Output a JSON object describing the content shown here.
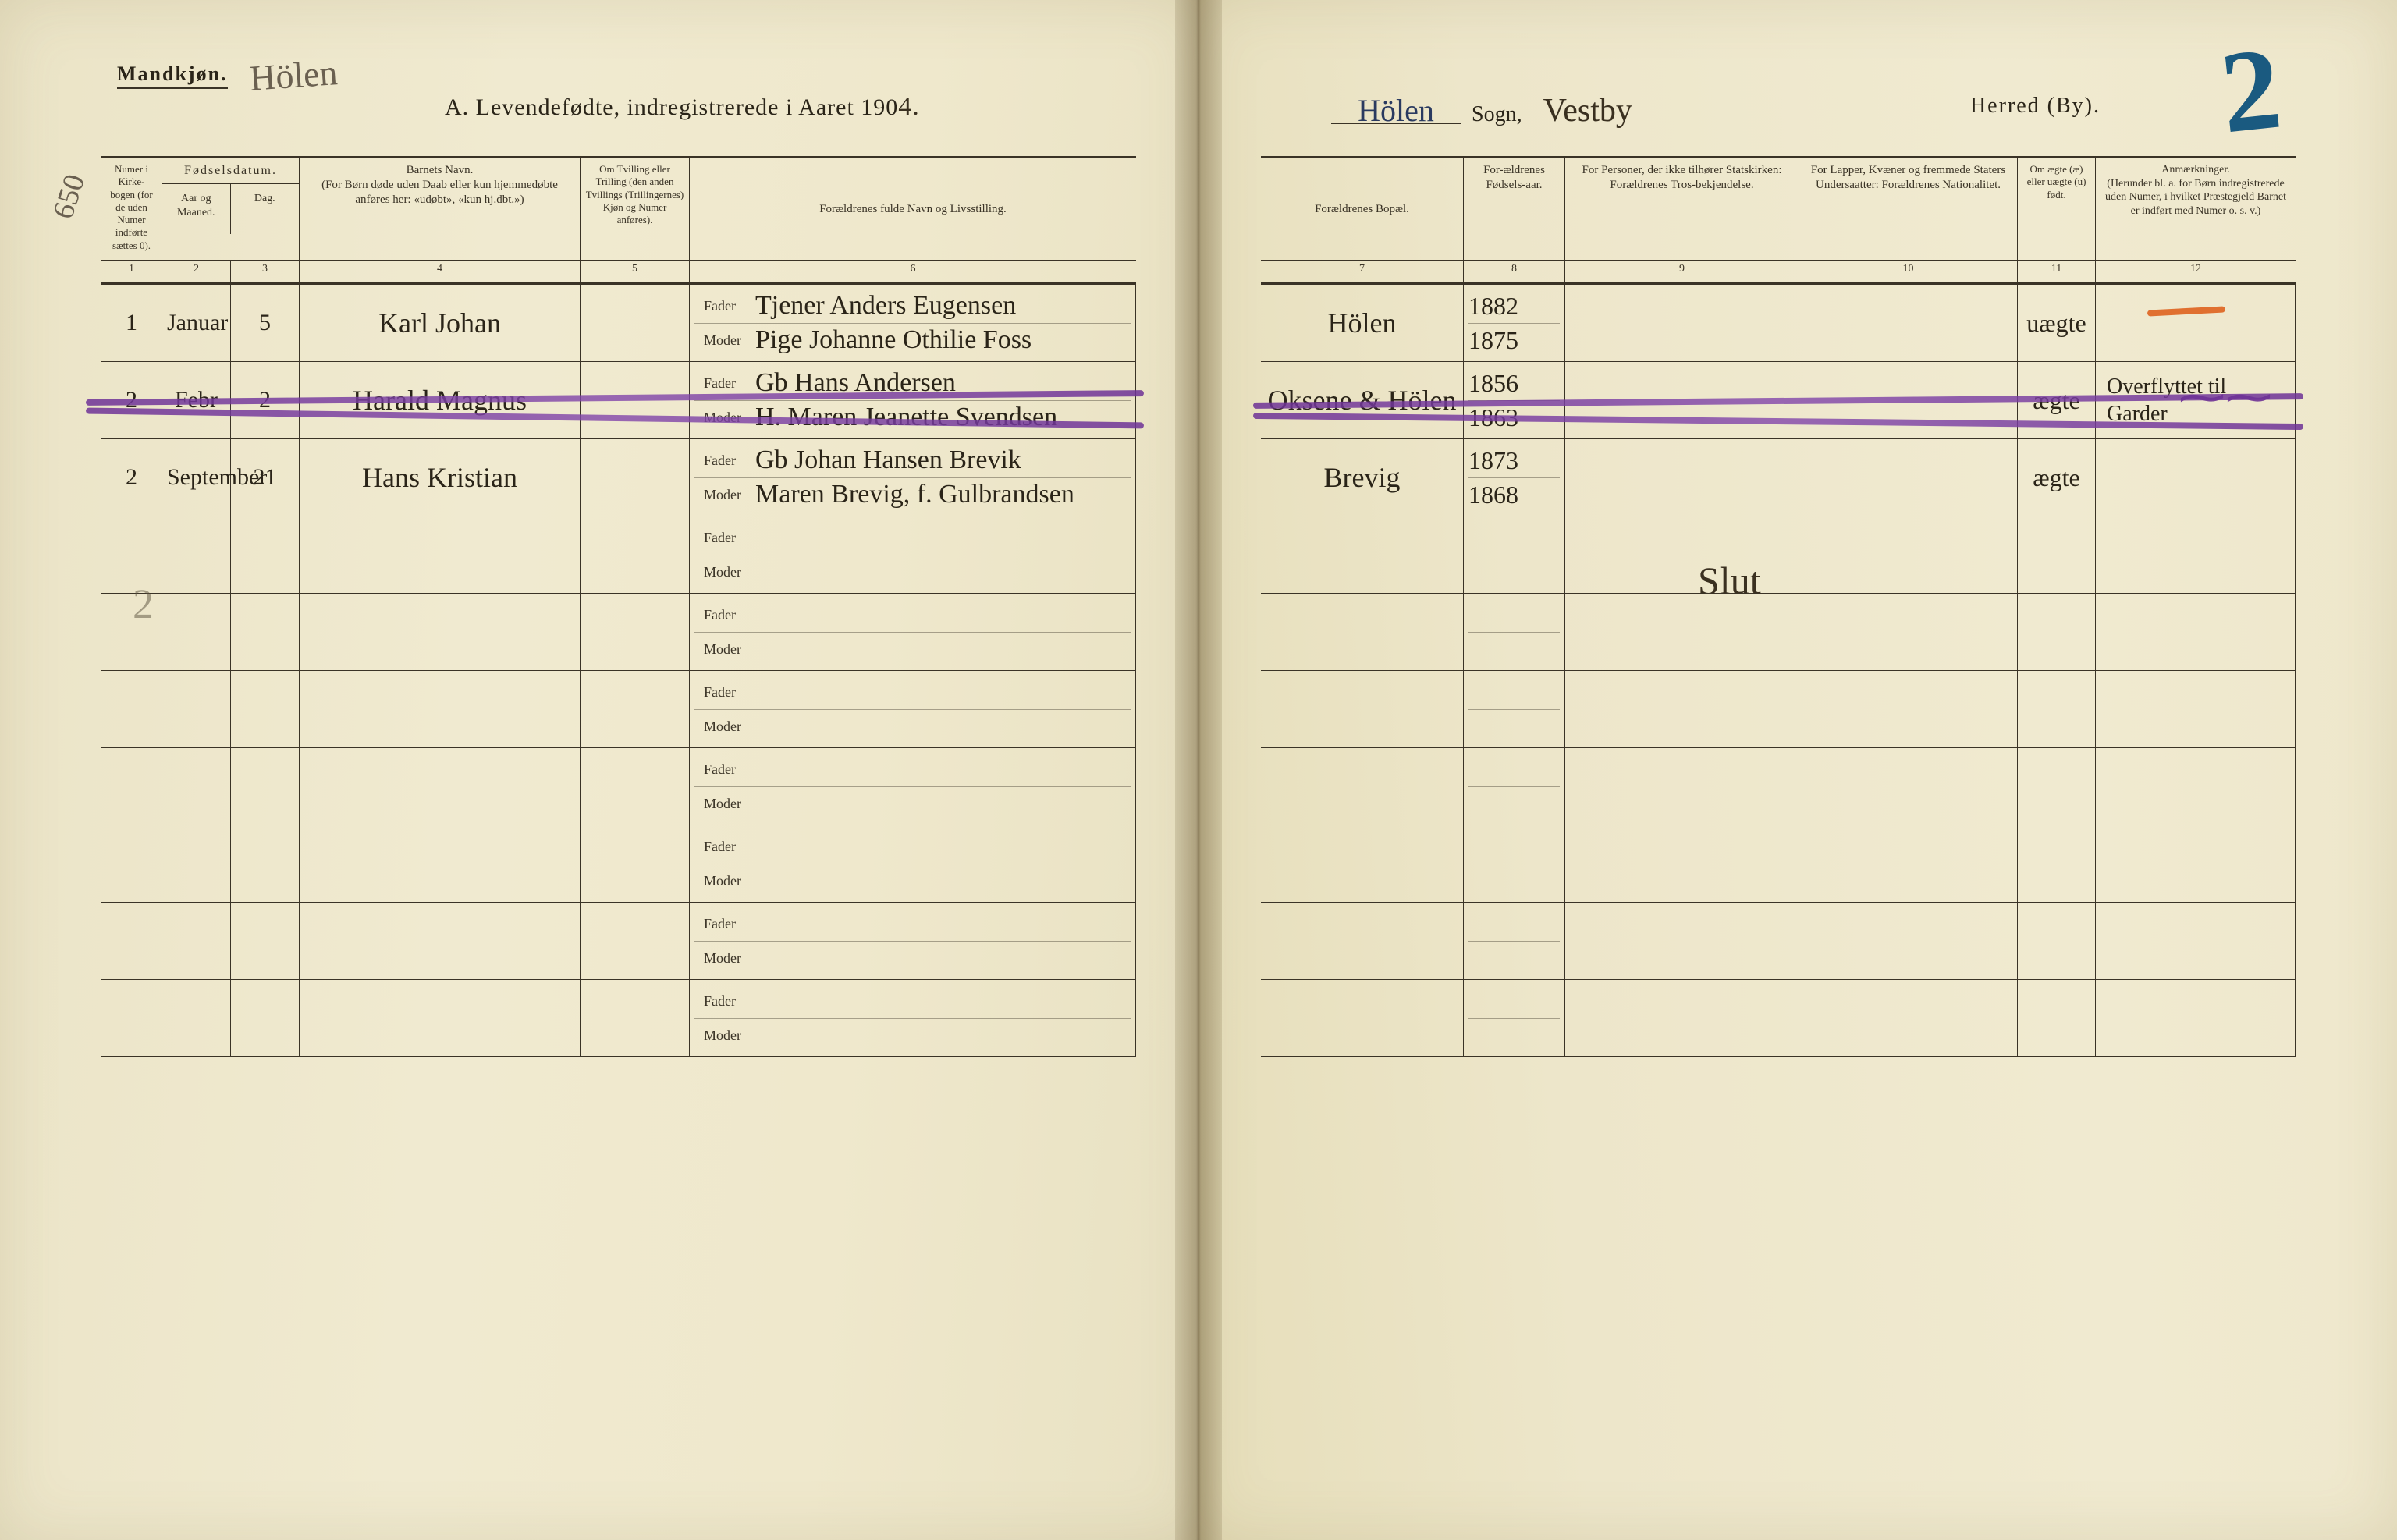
{
  "header": {
    "gender_label": "Mandkjøn.",
    "parish_handwritten_top": "Hölen",
    "title_prefix": "A.  Levendefødte, indregistrerede i Aaret 190",
    "year_suffix": "4.",
    "sogn_hw": "Hölen",
    "sogn_label": "Sogn,",
    "herred_hw": "Vestby",
    "herred_label": "Herred (By).",
    "big_page_number": "2"
  },
  "column_headers": {
    "c1": "Numer i Kirke-bogen (for de uden Numer indførte sættes 0).",
    "c2_top": "Fødselsdatum.",
    "c2a": "Aar og Maaned.",
    "c2b": "Dag.",
    "c4": "Barnets Navn.\n(For Børn døde uden Daab eller kun hjemmedøbte anføres her: «udøbt», «kun hj.dbt.»)",
    "c5": "Om Tvilling eller Trilling (den anden Tvillings (Trillingernes) Kjøn og Numer anføres).",
    "c6": "Forældrenes fulde Navn og Livsstilling.",
    "c7": "Forældrenes Bopæl.",
    "c8": "For-ældrenes Fødsels-aar.",
    "c9": "For Personer, der ikke tilhører Statskirken: Forældrenes Tros-bekjendelse.",
    "c10": "For Lapper, Kvæner og fremmede Staters Undersaatter: Forældrenes Nationalitet.",
    "c11": "Om ægte (æ) eller uægte (u) født.",
    "c12": "Anmærkninger.\n(Herunder bl. a. for Børn indregistrerede uden Numer, i hvilket Præstegjeld Barnet er indført med Numer o. s. v.)"
  },
  "column_numbers": [
    "1",
    "2",
    "3",
    "4",
    "5",
    "6",
    "7",
    "8",
    "9",
    "10",
    "11",
    "12"
  ],
  "parent_labels": {
    "father": "Fader",
    "mother": "Moder"
  },
  "rows": [
    {
      "num": "1",
      "month": "Januar",
      "day": "5",
      "name": "Karl Johan",
      "father": "Tjener Anders Eugensen",
      "mother": "Pige Johanne Othilie Foss",
      "residence": "Hölen",
      "father_year": "1882",
      "mother_year": "1875",
      "legit": "uægte",
      "remark": ""
    },
    {
      "num": "2",
      "month": "Febr",
      "day": "2",
      "name": "Harald Magnus",
      "father": "Gb Hans Andersen",
      "mother": "H. Maren Jeanette Svendsen",
      "residence": "Oksene & Hölen",
      "father_year": "1856",
      "mother_year": "1863",
      "legit": "ægte",
      "remark": "Overflyttet til Garder",
      "struck": true
    },
    {
      "num": "2",
      "month": "September",
      "day": "21",
      "name": "Hans Kristian",
      "father": "Gb Johan Hansen Brevik",
      "mother": "Maren Brevig, f. Gulbrandsen",
      "residence": "Brevig",
      "father_year": "1873",
      "mother_year": "1868",
      "legit": "ægte",
      "remark": ""
    },
    {
      "empty": true
    },
    {
      "empty": true
    },
    {
      "empty": true
    },
    {
      "empty": true
    },
    {
      "empty": true
    },
    {
      "empty": true
    },
    {
      "empty": true
    }
  ],
  "annotations": {
    "margin_650": "650",
    "faint_2_margin": "2",
    "slut_text": "Slut"
  },
  "colors": {
    "ink": "#2a2418",
    "rule": "#3a3326",
    "paper_light": "#f0ead0",
    "purple": "#6e3296",
    "blue": "#1a5a80",
    "orange": "#e07030"
  }
}
